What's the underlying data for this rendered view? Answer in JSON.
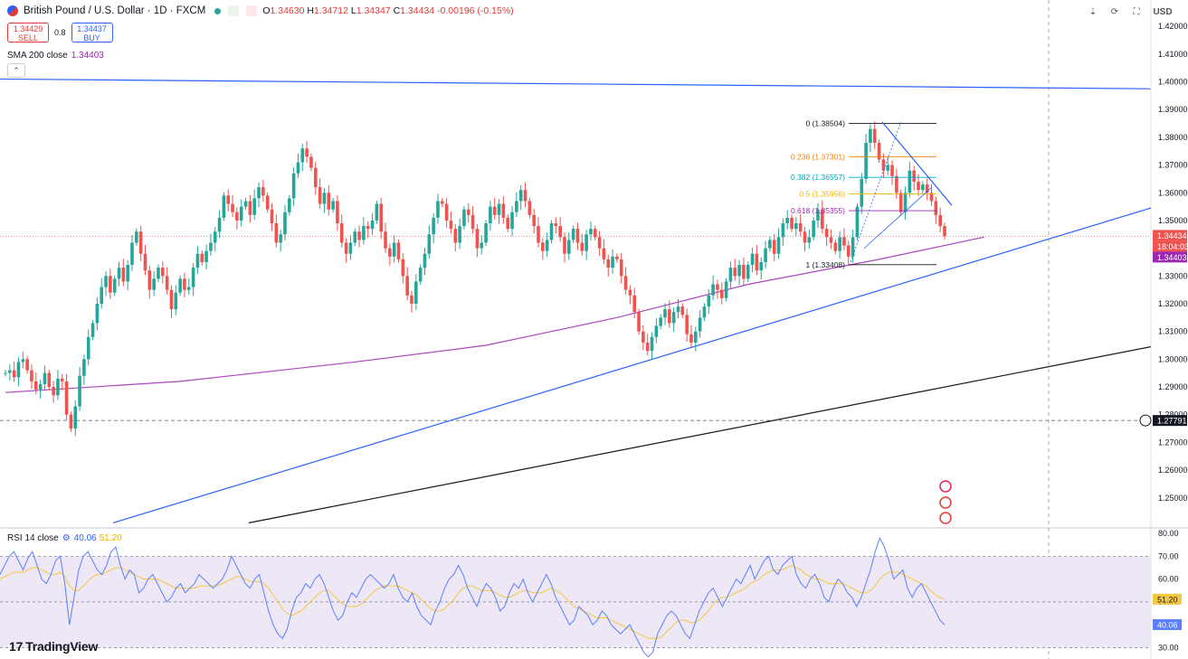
{
  "header": {
    "symbol": "British Pound / U.S. Dollar · 1D · FXCM",
    "ohlc": {
      "o": "1.34630",
      "h": "1.34712",
      "l": "1.34347",
      "c": "1.34434",
      "chg": "-0.00196 (-0.15%)"
    }
  },
  "trade": {
    "sell_price": "1.34429",
    "sell_label": "SELL",
    "spread": "0.8",
    "buy_price": "1.34437",
    "buy_label": "BUY"
  },
  "sma_label": "SMA 200 close",
  "sma_value": "1.34403",
  "rsi_label": "RSI 14 close",
  "rsi_value": "40.06",
  "rsi_ma_value": "51.20",
  "currency": "USD",
  "logo": "TradingView",
  "colors": {
    "up": "#26a69a",
    "down": "#ef5350",
    "sma": "#ab47bc",
    "trend": "#2962ff",
    "rsi": "#5b7fff",
    "rsi_ma": "#f5c842",
    "rsi_band": "#ede7f6"
  },
  "chart_data": [
    {
      "type": "candlestick",
      "title": "British Pound / U.S. Dollar · 1D · FXCM",
      "ylim": [
        1.2395,
        1.4295
      ],
      "y_ticks": [
        "1.42000",
        "1.41000",
        "1.40000",
        "1.39000",
        "1.38000",
        "1.37000",
        "1.36000",
        "1.35000",
        "1.34000",
        "1.33000",
        "1.32000",
        "1.31000",
        "1.30000",
        "1.29000",
        "1.28000",
        "1.27000",
        "1.26000",
        "1.25000"
      ],
      "last_price_label": "1.34434",
      "countdown_label": "18:04:03",
      "sma_price_label": "1.34403",
      "hline_label": "1.27791",
      "hline_value": 1.27791,
      "series_close": [
        1.295,
        1.296,
        1.2935,
        1.299,
        1.3,
        1.296,
        1.292,
        1.289,
        1.291,
        1.295,
        1.29,
        1.287,
        1.293,
        1.292,
        1.28,
        1.275,
        1.283,
        1.294,
        1.3,
        1.308,
        1.313,
        1.32,
        1.326,
        1.33,
        1.324,
        1.329,
        1.333,
        1.328,
        1.334,
        1.342,
        1.346,
        1.338,
        1.332,
        1.325,
        1.329,
        1.333,
        1.33,
        1.325,
        1.318,
        1.324,
        1.329,
        1.325,
        1.326,
        1.333,
        1.338,
        1.335,
        1.339,
        1.342,
        1.346,
        1.351,
        1.359,
        1.356,
        1.353,
        1.35,
        1.355,
        1.357,
        1.352,
        1.358,
        1.362,
        1.359,
        1.354,
        1.349,
        1.342,
        1.345,
        1.353,
        1.358,
        1.367,
        1.371,
        1.376,
        1.373,
        1.369,
        1.362,
        1.356,
        1.36,
        1.354,
        1.357,
        1.349,
        1.342,
        1.338,
        1.342,
        1.346,
        1.343,
        1.348,
        1.347,
        1.35,
        1.356,
        1.346,
        1.34,
        1.337,
        1.342,
        1.336,
        1.33,
        1.323,
        1.32,
        1.328,
        1.333,
        1.338,
        1.345,
        1.351,
        1.357,
        1.356,
        1.35,
        1.347,
        1.342,
        1.348,
        1.354,
        1.352,
        1.347,
        1.34,
        1.342,
        1.349,
        1.355,
        1.352,
        1.356,
        1.351,
        1.347,
        1.353,
        1.357,
        1.361,
        1.357,
        1.352,
        1.348,
        1.342,
        1.339,
        1.343,
        1.349,
        1.348,
        1.344,
        1.338,
        1.343,
        1.347,
        1.342,
        1.339,
        1.345,
        1.347,
        1.344,
        1.34,
        1.336,
        1.333,
        1.337,
        1.336,
        1.33,
        1.325,
        1.323,
        1.317,
        1.31,
        1.306,
        1.303,
        1.308,
        1.312,
        1.315,
        1.318,
        1.313,
        1.317,
        1.319,
        1.316,
        1.309,
        1.306,
        1.31,
        1.315,
        1.319,
        1.323,
        1.327,
        1.325,
        1.322,
        1.328,
        1.333,
        1.33,
        1.334,
        1.329,
        1.334,
        1.338,
        1.332,
        1.335,
        1.34,
        1.343,
        1.338,
        1.344,
        1.349,
        1.351,
        1.347,
        1.349,
        1.346,
        1.342,
        1.344,
        1.35,
        1.354,
        1.347,
        1.344,
        1.342,
        1.339,
        1.344,
        1.341,
        1.337,
        1.344,
        1.355,
        1.365,
        1.378,
        1.383,
        1.378,
        1.372,
        1.368,
        1.37,
        1.366,
        1.36,
        1.353,
        1.36,
        1.368,
        1.364,
        1.361,
        1.363,
        1.36,
        1.357,
        1.352,
        1.348,
        1.3443
      ],
      "sma200": {
        "start": 1.288,
        "points": [
          [
            0,
            1.288
          ],
          [
            40,
            1.292
          ],
          [
            80,
            1.299
          ],
          [
            110,
            1.305
          ],
          [
            140,
            1.315
          ],
          [
            170,
            1.327
          ],
          [
            200,
            1.336
          ],
          [
            224,
            1.344
          ]
        ]
      },
      "fib_levels": [
        {
          "ratio_label": "0 (1.38504)",
          "value": 1.38504,
          "color": "#131722"
        },
        {
          "ratio_label": "0.236 (1.37301)",
          "value": 1.37301,
          "color": "#f57c00"
        },
        {
          "ratio_label": "0.382 (1.36557)",
          "value": 1.36557,
          "color": "#00acc1"
        },
        {
          "ratio_label": "0.5 (1.35956)",
          "value": 1.35956,
          "color": "#f0b400"
        },
        {
          "ratio_label": "0.618 (1.35355)",
          "value": 1.35355,
          "color": "#9c27b0"
        },
        {
          "ratio_label": "1 (1.33408)",
          "value": 1.33408,
          "color": "#131722"
        }
      ]
    },
    {
      "type": "line",
      "title": "RSI 14 close",
      "ylim": [
        25,
        82
      ],
      "y_ticks": [
        "80.00",
        "70.00",
        "60.00",
        "50.00",
        "40.00",
        "30.00"
      ],
      "band": [
        30,
        70
      ],
      "midline": 50,
      "current_rsi": "40.06",
      "current_ma": "51.20",
      "series": [
        {
          "values": [
            62,
            66,
            70,
            72,
            68,
            64,
            69,
            72,
            66,
            60,
            58,
            62,
            68,
            70,
            58,
            40,
            52,
            64,
            70,
            72,
            68,
            64,
            62,
            66,
            72,
            74,
            66,
            60,
            64,
            62,
            54,
            56,
            60,
            62,
            58,
            54,
            50,
            52,
            56,
            58,
            54,
            56,
            58,
            62,
            60,
            58,
            56,
            58,
            60,
            64,
            70,
            66,
            62,
            58,
            56,
            60,
            62,
            54,
            46,
            40,
            36,
            34,
            38,
            46,
            52,
            54,
            58,
            56,
            60,
            62,
            58,
            52,
            46,
            42,
            44,
            50,
            54,
            52,
            56,
            60,
            62,
            60,
            58,
            56,
            58,
            62,
            56,
            52,
            50,
            54,
            48,
            44,
            42,
            40,
            46,
            50,
            56,
            60,
            62,
            66,
            62,
            56,
            52,
            48,
            54,
            58,
            56,
            52,
            46,
            48,
            54,
            58,
            56,
            60,
            54,
            50,
            54,
            58,
            62,
            58,
            52,
            48,
            44,
            40,
            42,
            48,
            46,
            44,
            40,
            42,
            46,
            44,
            40,
            38,
            36,
            38,
            40,
            36,
            32,
            28,
            26,
            28,
            36,
            40,
            44,
            46,
            44,
            40,
            36,
            34,
            40,
            46,
            50,
            54,
            56,
            52,
            48,
            52,
            56,
            60,
            58,
            62,
            66,
            60,
            64,
            68,
            70,
            64,
            62,
            66,
            68,
            70,
            62,
            58,
            56,
            60,
            62,
            58,
            52,
            50,
            56,
            60,
            58,
            54,
            52,
            48,
            52,
            58,
            64,
            72,
            78,
            74,
            68,
            60,
            62,
            64,
            56,
            52,
            56,
            58,
            54,
            50,
            46,
            42,
            40
          ]
        },
        {
          "values": [
            60,
            61,
            62,
            63,
            63,
            63,
            64,
            65,
            65,
            64,
            63,
            62,
            62,
            63,
            61,
            57,
            55,
            55,
            57,
            59,
            61,
            62,
            62,
            63,
            64,
            65,
            65,
            64,
            63,
            62,
            61,
            60,
            60,
            60,
            60,
            59,
            58,
            57,
            56,
            56,
            56,
            56,
            56,
            57,
            57,
            57,
            57,
            57,
            58,
            59,
            60,
            61,
            61,
            60,
            59,
            59,
            59,
            58,
            56,
            53,
            50,
            47,
            45,
            44,
            45,
            46,
            48,
            50,
            52,
            54,
            55,
            55,
            53,
            51,
            49,
            48,
            48,
            48,
            49,
            51,
            53,
            55,
            56,
            57,
            57,
            57,
            57,
            56,
            55,
            54,
            53,
            51,
            49,
            47,
            46,
            46,
            47,
            49,
            51,
            54,
            56,
            57,
            57,
            56,
            55,
            55,
            55,
            54,
            53,
            52,
            52,
            53,
            54,
            55,
            55,
            54,
            54,
            54,
            55,
            56,
            55,
            54,
            52,
            50,
            48,
            47,
            46,
            45,
            44,
            43,
            43,
            43,
            42,
            41,
            40,
            39,
            38,
            37,
            36,
            35,
            34,
            34,
            34,
            35,
            37,
            39,
            41,
            42,
            42,
            41,
            41,
            42,
            44,
            46,
            49,
            51,
            52,
            52,
            53,
            54,
            55,
            56,
            58,
            59,
            60,
            62,
            63,
            64,
            64,
            64,
            65,
            66,
            65,
            64,
            62,
            61,
            60,
            60,
            59,
            58,
            58,
            58,
            58,
            57,
            56,
            55,
            54,
            54,
            55,
            57,
            60,
            62,
            63,
            63,
            63,
            62,
            61,
            60,
            59,
            58,
            57,
            55,
            53,
            52,
            51.2
          ]
        }
      ]
    }
  ]
}
